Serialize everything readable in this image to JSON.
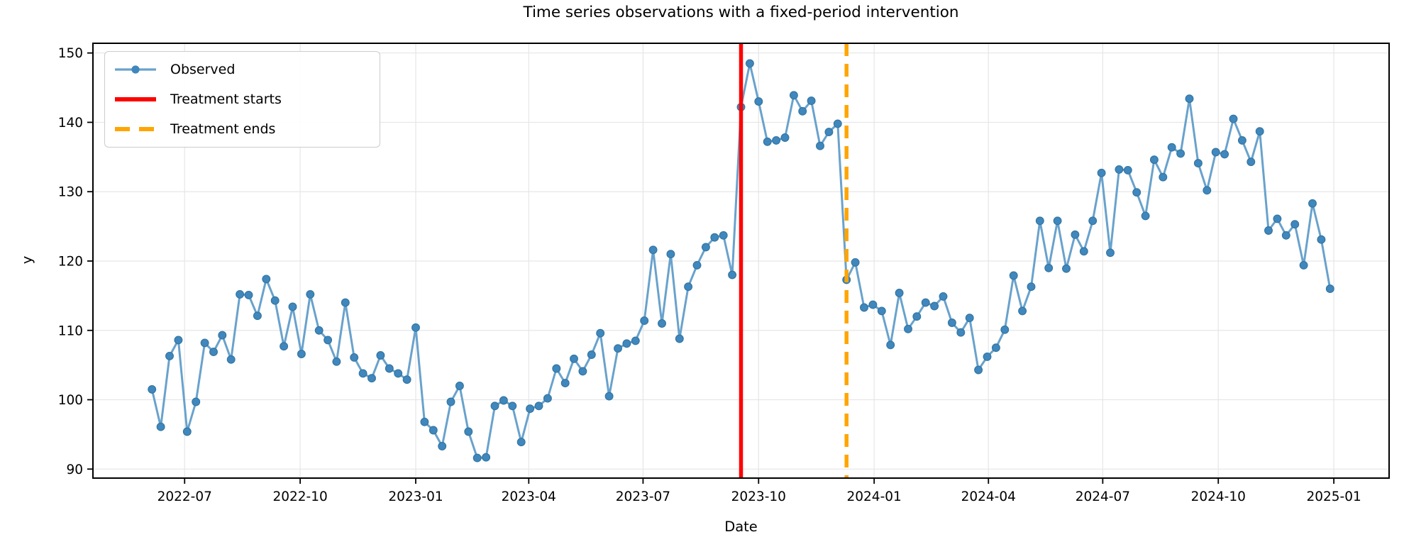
{
  "chart_data": {
    "type": "line",
    "title": "Time series observations with a fixed-period intervention",
    "xlabel": "Date",
    "ylabel": "y",
    "x_start_date": "2022-06-05",
    "x_step_days": 7,
    "x_margin_days": 47,
    "ylim": [
      88.7,
      151.4
    ],
    "grid": true,
    "legend_position": "upper left",
    "background": "#ffffff",
    "y_ticks": [
      90,
      100,
      110,
      120,
      130,
      140,
      150
    ],
    "x_ticks": [
      {
        "date": "2022-07-01",
        "label": "2022-07"
      },
      {
        "date": "2022-10-01",
        "label": "2022-10"
      },
      {
        "date": "2023-01-01",
        "label": "2023-01"
      },
      {
        "date": "2023-04-01",
        "label": "2023-04"
      },
      {
        "date": "2023-07-01",
        "label": "2023-07"
      },
      {
        "date": "2023-10-01",
        "label": "2023-10"
      },
      {
        "date": "2024-01-01",
        "label": "2024-01"
      },
      {
        "date": "2024-04-01",
        "label": "2024-04"
      },
      {
        "date": "2024-07-01",
        "label": "2024-07"
      },
      {
        "date": "2024-10-01",
        "label": "2024-10"
      },
      {
        "date": "2025-01-01",
        "label": "2025-01"
      }
    ],
    "series": [
      {
        "name": "Observed",
        "line_color": "#69a2cc",
        "marker_color": "#3f87bd",
        "marker": "o",
        "values": [
          101.5,
          96.1,
          106.3,
          108.6,
          95.4,
          99.7,
          108.2,
          106.9,
          109.3,
          105.8,
          115.2,
          115.1,
          112.1,
          117.4,
          114.3,
          107.7,
          113.4,
          106.6,
          115.2,
          110.0,
          108.6,
          105.5,
          114.0,
          106.1,
          103.8,
          103.1,
          106.4,
          104.5,
          103.8,
          102.9,
          110.4,
          96.8,
          95.6,
          93.3,
          99.7,
          102.0,
          95.4,
          91.6,
          91.7,
          99.1,
          99.9,
          99.1,
          93.9,
          98.7,
          99.1,
          100.2,
          104.5,
          102.4,
          105.9,
          104.1,
          106.5,
          109.6,
          100.5,
          107.4,
          108.1,
          108.5,
          111.4,
          121.6,
          111.0,
          121.0,
          108.8,
          116.3,
          119.4,
          122.0,
          123.4,
          123.7,
          118.0,
          142.2,
          148.5,
          143.0,
          137.2,
          137.4,
          137.8,
          143.9,
          141.6,
          143.1,
          136.6,
          138.6,
          139.8,
          117.3,
          119.8,
          113.3,
          113.7,
          112.8,
          107.9,
          115.4,
          110.2,
          112.0,
          114.0,
          113.5,
          114.9,
          111.1,
          109.7,
          111.8,
          104.3,
          106.2,
          107.5,
          110.1,
          117.9,
          112.8,
          116.3,
          125.8,
          119.0,
          125.8,
          118.9,
          123.8,
          121.4,
          125.8,
          132.7,
          121.2,
          133.2,
          133.1,
          129.9,
          126.5,
          134.6,
          132.1,
          136.4,
          135.5,
          143.4,
          134.1,
          130.2,
          135.7,
          135.4,
          140.5,
          137.4,
          134.3,
          138.7,
          124.4,
          126.1,
          123.7,
          125.3,
          119.4,
          128.3,
          123.1,
          116.0
        ]
      }
    ],
    "vlines": [
      {
        "label": "Treatment starts",
        "date": "2023-09-17",
        "color": "#ff0000",
        "style": "solid",
        "width": 5.5
      },
      {
        "label": "Treatment ends",
        "date": "2023-12-10",
        "color": "#ffa500",
        "style": "dashed",
        "width": 5.5
      }
    ]
  },
  "legend": {
    "items": [
      {
        "label": "Observed",
        "swatch": "line-with-marker",
        "color": "#69a2cc",
        "marker_color": "#3f87bd"
      },
      {
        "label": "Treatment starts",
        "swatch": "solid-line",
        "color": "#ff0000"
      },
      {
        "label": "Treatment ends",
        "swatch": "dashed-line",
        "color": "#ffa500"
      }
    ]
  },
  "colors": {
    "grid": "#e6e6e6",
    "spine": "#000000",
    "text": "#000000"
  }
}
